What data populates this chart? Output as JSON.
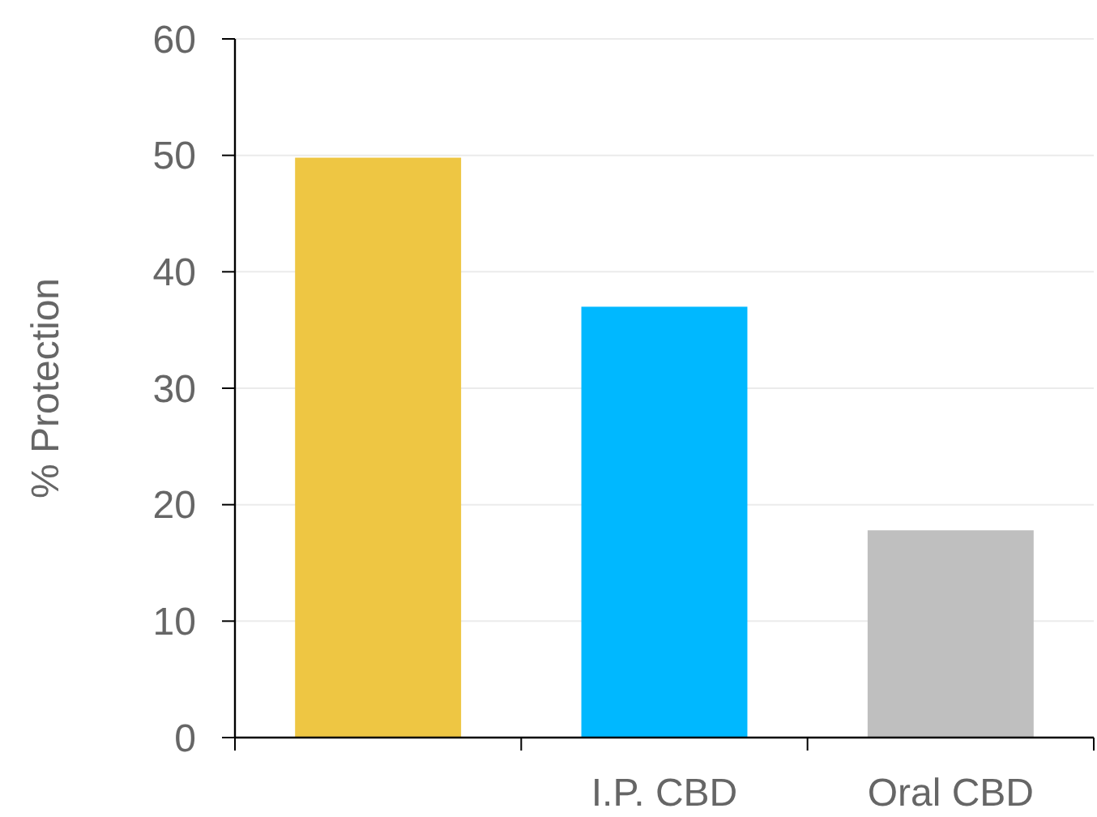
{
  "chart_data": {
    "type": "bar",
    "ylabel": "% Protection",
    "categories": [
      null,
      "I.P. CBD",
      "Oral CBD"
    ],
    "values": [
      49.8,
      37,
      17.8
    ],
    "colors": [
      "#eec643",
      "#00b8ff",
      "#bfbfbf"
    ],
    "ylim": [
      0,
      60
    ],
    "yticks": [
      0,
      10,
      20,
      30,
      40,
      50,
      60
    ],
    "grid": "y"
  }
}
